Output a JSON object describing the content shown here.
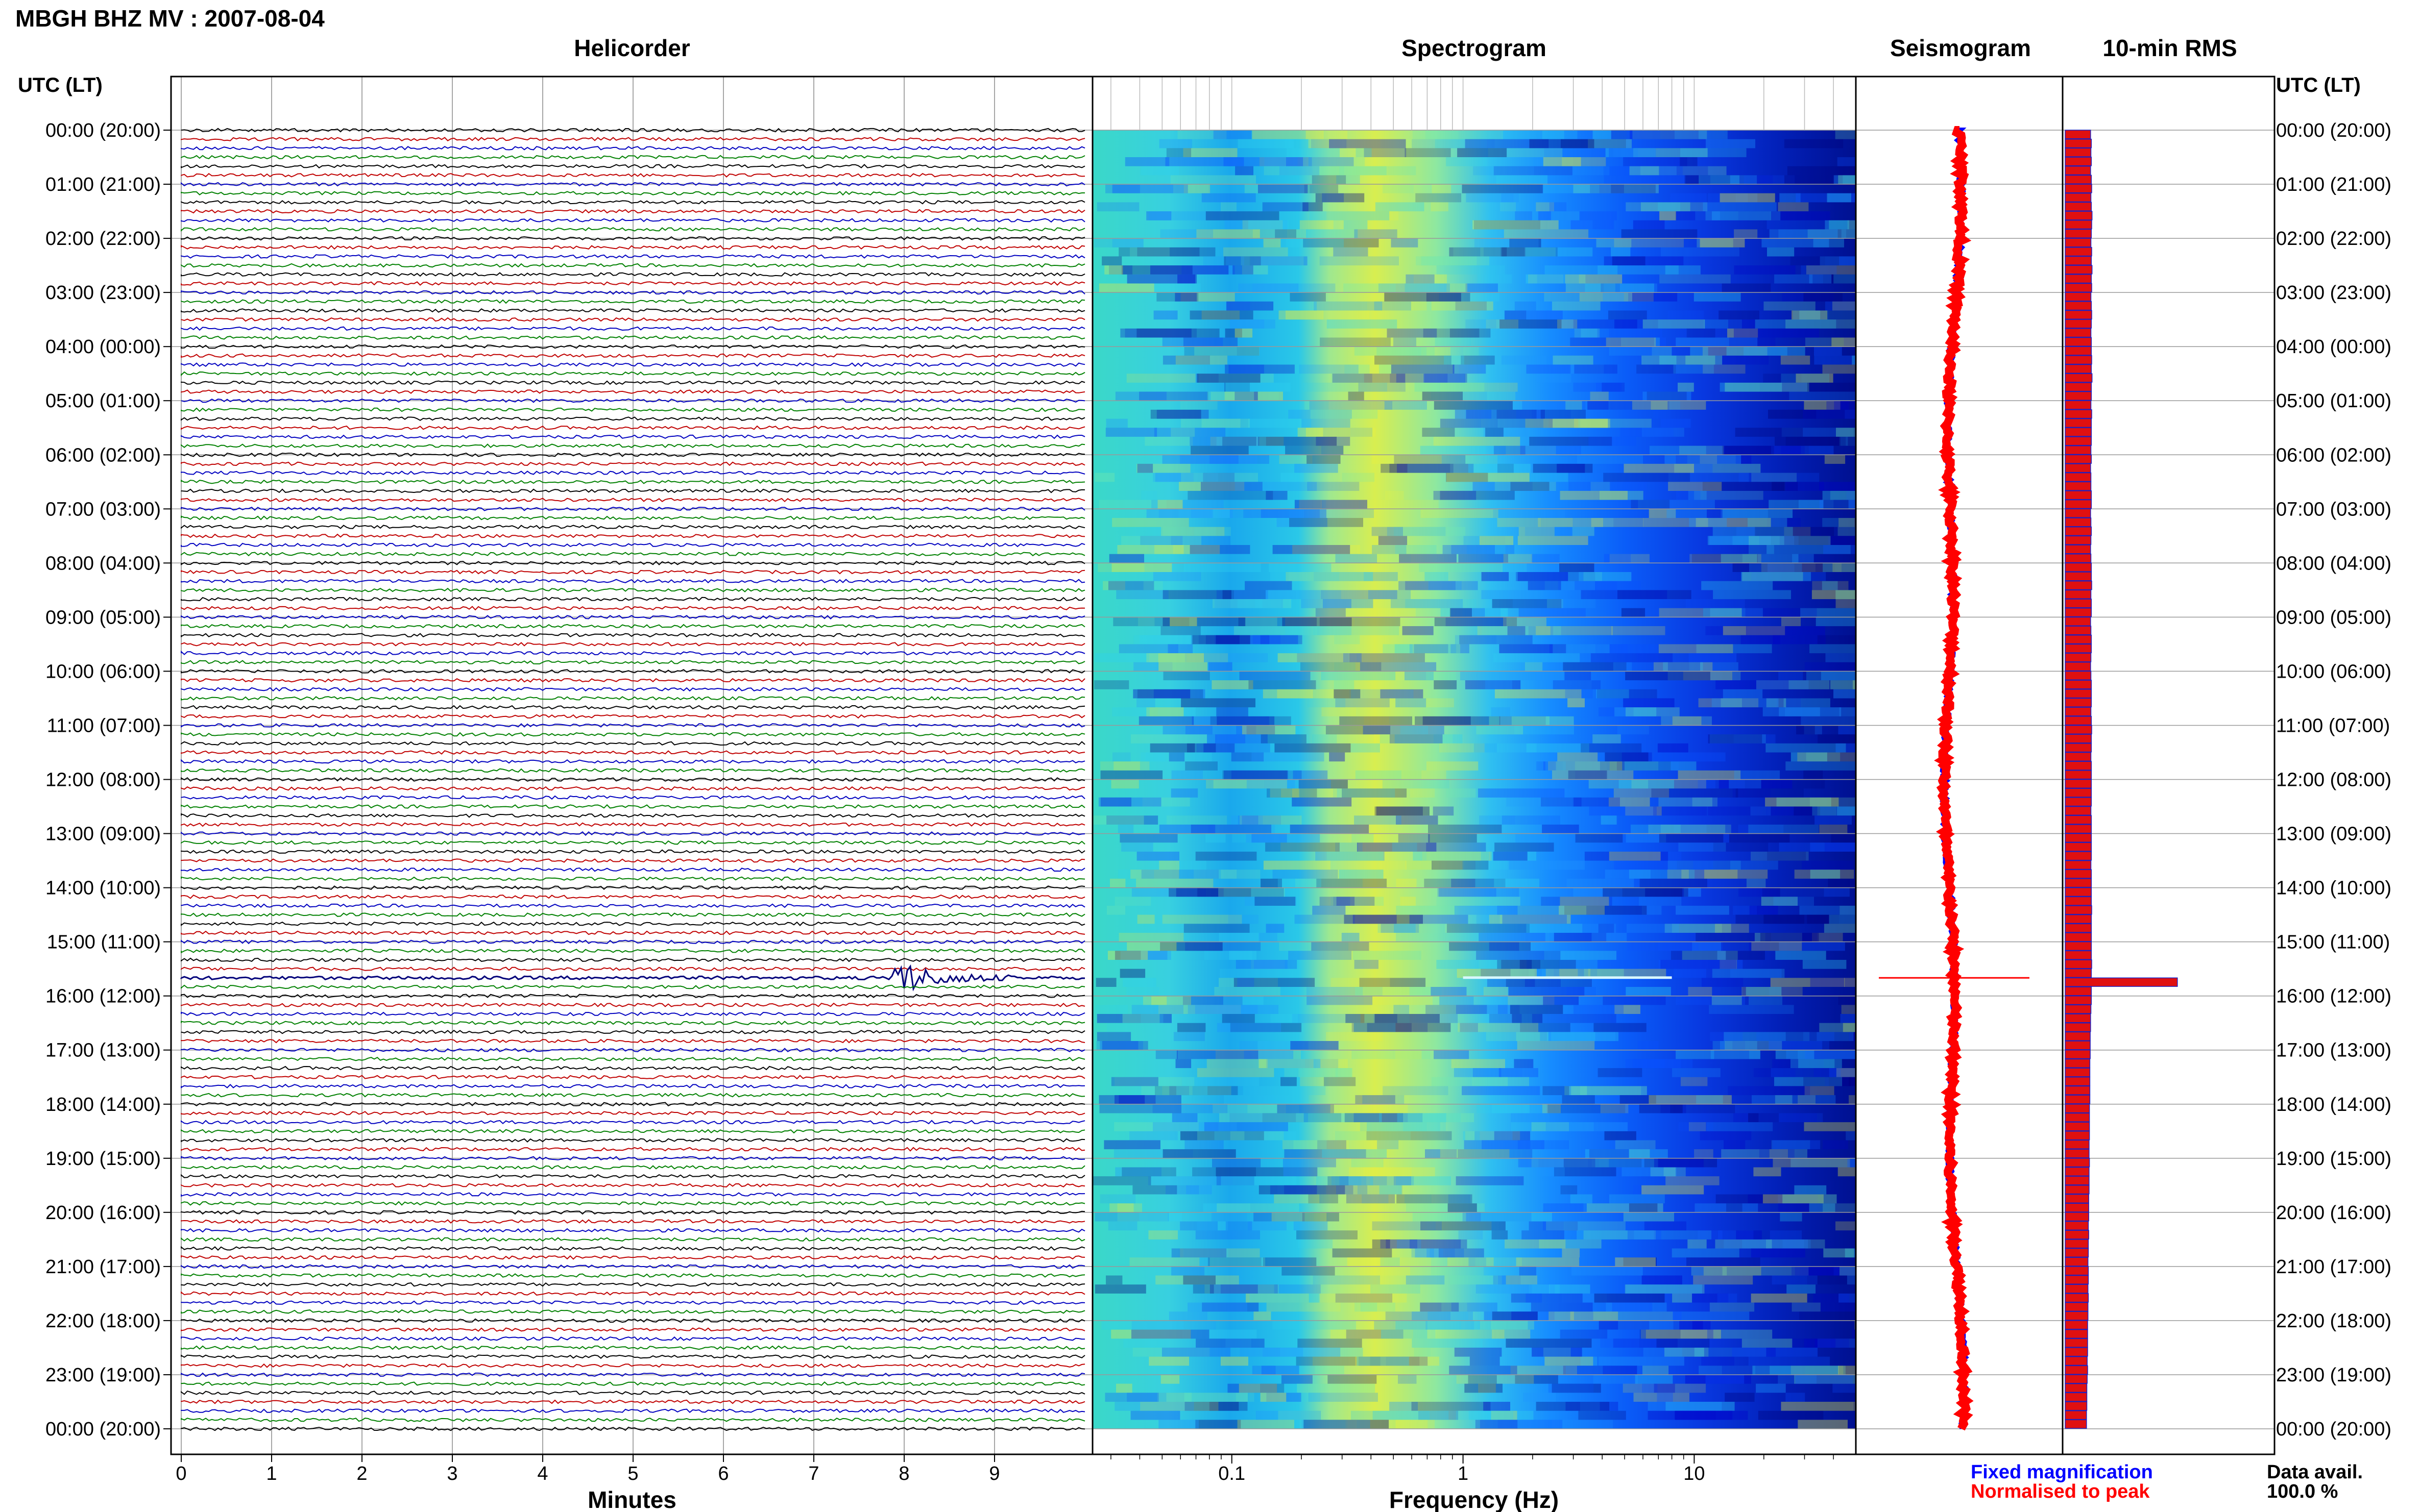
{
  "header": {
    "title": "MBGH BHZ MV : 2007-08-04"
  },
  "panels": {
    "helicorder": "Helicorder",
    "spectrogram": "Spectrogram",
    "seismogram": "Seismogram",
    "rms": "10-min RMS"
  },
  "axes": {
    "left_label": "UTC (LT)",
    "right_label": "UTC (LT)",
    "minutes_label": "Minutes",
    "frequency_label": "Frequency (Hz)"
  },
  "legend": {
    "fixed": "Fixed magnification",
    "normalised": "Normalised to peak",
    "fixed_color": "#0000ff",
    "normalised_color": "#ff0000"
  },
  "data_avail": {
    "label": "Data avail.",
    "value": "100.0 %"
  },
  "chart_data": {
    "type": "heatmap",
    "time_labels": [
      "00:00 (20:00)",
      "01:00 (21:00)",
      "02:00 (22:00)",
      "03:00 (23:00)",
      "04:00 (00:00)",
      "05:00 (01:00)",
      "06:00 (02:00)",
      "07:00 (03:00)",
      "08:00 (04:00)",
      "09:00 (05:00)",
      "10:00 (06:00)",
      "11:00 (07:00)",
      "12:00 (08:00)",
      "13:00 (09:00)",
      "14:00 (10:00)",
      "15:00 (11:00)",
      "16:00 (12:00)",
      "17:00 (13:00)",
      "18:00 (14:00)",
      "19:00 (15:00)",
      "20:00 (16:00)",
      "21:00 (17:00)",
      "22:00 (18:00)",
      "23:00 (19:00)",
      "00:00 (20:00)"
    ],
    "minutes_ticks": [
      "0",
      "1",
      "2",
      "3",
      "4",
      "5",
      "6",
      "7",
      "8",
      "9"
    ],
    "minutes_range": [
      0,
      10
    ],
    "frequency_ticks": [
      "0.1",
      "1",
      "10"
    ],
    "frequency_range": [
      0.025,
      50
    ],
    "frequency_scale": "log",
    "helicorder_trace_colors": [
      "#000000",
      "#c00000",
      "#0000c0",
      "#008000"
    ],
    "helicorder_lines_per_hour": 6,
    "event": {
      "utc": "15:40",
      "minute_start": 7.8,
      "minute_end": 9.2
    },
    "spectrogram_colormap": [
      "#00007a",
      "#0000c8",
      "#0a50ff",
      "#1e96ff",
      "#2ed0f0",
      "#70e8b0",
      "#e8f040"
    ],
    "rms_values": [
      0.68,
      0.7,
      0.69,
      0.7,
      0.68,
      0.7,
      0.71,
      0.69,
      0.7,
      0.72,
      0.71,
      0.7,
      0.69,
      0.71,
      0.7,
      0.72,
      0.7,
      0.71,
      0.69,
      0.7,
      0.71,
      0.7,
      0.69,
      0.7,
      0.7,
      0.71,
      0.7,
      0.72,
      0.7,
      0.7,
      0.69,
      0.71,
      0.7,
      0.7,
      0.7,
      0.69,
      0.7,
      0.68,
      0.69,
      0.69,
      0.7,
      0.7,
      0.68,
      0.69,
      0.7,
      0.69,
      0.68,
      0.69,
      0.7,
      0.7,
      0.71,
      0.69,
      0.7,
      0.7,
      0.68,
      0.69,
      0.7,
      0.7,
      0.69,
      0.68,
      0.69,
      0.7,
      0.7,
      0.7,
      0.69,
      0.7,
      0.71,
      0.7,
      0.7,
      0.69,
      0.7,
      0.7,
      0.7,
      0.7,
      0.7,
      0.69,
      0.7,
      0.7,
      0.7,
      0.7,
      0.7,
      0.69,
      0.7,
      0.7,
      0.7,
      0.7,
      0.71,
      0.7,
      0.7,
      0.7,
      0.7,
      0.7,
      0.71,
      0.7,
      3.0,
      0.7,
      0.7,
      0.69,
      0.68,
      0.68,
      0.67,
      0.67,
      0.67,
      0.66,
      0.66,
      0.66,
      0.66,
      0.66,
      0.65,
      0.65,
      0.65,
      0.65,
      0.64,
      0.64,
      0.65,
      0.64,
      0.64,
      0.64,
      0.63,
      0.63,
      0.63,
      0.62,
      0.63,
      0.62,
      0.62,
      0.61,
      0.62,
      0.62,
      0.61,
      0.62,
      0.61,
      0.61,
      0.6,
      0.6,
      0.6,
      0.6,
      0.59,
      0.6,
      0.59,
      0.58,
      0.58,
      0.58,
      0.57,
      0.57
    ],
    "rms_xlim": [
      0,
      1
    ]
  }
}
